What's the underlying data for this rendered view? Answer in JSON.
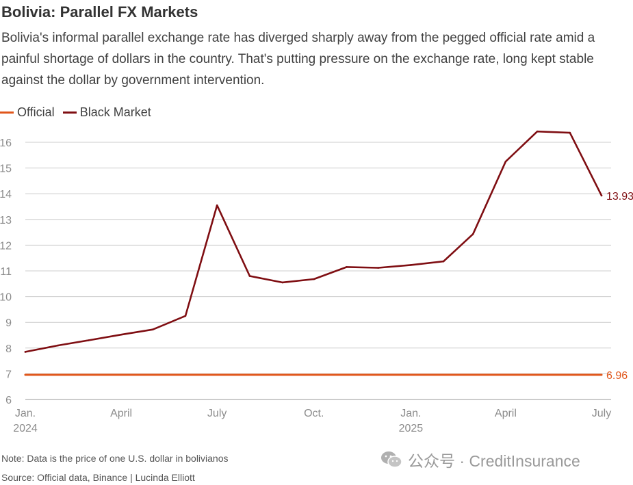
{
  "header": {
    "title": "Bolivia: Parallel FX Markets",
    "subtitle": "Bolivia's informal parallel exchange rate has diverged sharply away from the pegged official rate amid a painful shortage of dollars in the country. That's putting pressure on the exchange rate, long kept stable against the dollar by government intervention."
  },
  "footer": {
    "note": "Note: Data is the price of one U.S. dollar in bolivianos",
    "source": "Source: Official data, Binance | Lucinda Elliott",
    "watermark": "公众号 · CreditInsurance"
  },
  "colors": {
    "official": "#e0561b",
    "black_market": "#7f0e12",
    "grid": "#cccccc",
    "tick_text": "#8c8c8c"
  },
  "chart_data": {
    "type": "line",
    "title": "Bolivia: Parallel FX Markets",
    "xlabel": "",
    "ylabel": "",
    "x_range": [
      "2024-01-01",
      "2025-07-01"
    ],
    "ylim": [
      6,
      16
    ],
    "y_ticks": [
      "6",
      "7",
      "8",
      "9",
      "10",
      "11",
      "12",
      "13",
      "14",
      "15",
      "16"
    ],
    "x_ticks": [
      {
        "date": "2024-01-01",
        "label": "Jan.",
        "sublabel": "2024"
      },
      {
        "date": "2024-04-01",
        "label": "April",
        "sublabel": ""
      },
      {
        "date": "2024-07-01",
        "label": "July",
        "sublabel": ""
      },
      {
        "date": "2024-10-01",
        "label": "Oct.",
        "sublabel": ""
      },
      {
        "date": "2025-01-01",
        "label": "Jan.",
        "sublabel": "2025"
      },
      {
        "date": "2025-04-01",
        "label": "April",
        "sublabel": ""
      },
      {
        "date": "2025-07-01",
        "label": "July",
        "sublabel": ""
      }
    ],
    "grid": true,
    "legend_position": "top-left",
    "series": [
      {
        "name": "Official",
        "color": "#e0561b",
        "end_label": "6.96",
        "points": [
          {
            "x": "2024-01-01",
            "y": 6.96
          },
          {
            "x": "2025-07-01",
            "y": 6.96
          }
        ]
      },
      {
        "name": "Black Market",
        "color": "#7f0e12",
        "end_label": "13.93",
        "points": [
          {
            "x": "2024-01-01",
            "y": 7.85
          },
          {
            "x": "2024-02-01",
            "y": 8.1
          },
          {
            "x": "2024-03-01",
            "y": 8.3
          },
          {
            "x": "2024-04-01",
            "y": 8.52
          },
          {
            "x": "2024-05-01",
            "y": 8.72
          },
          {
            "x": "2024-06-01",
            "y": 9.25
          },
          {
            "x": "2024-07-01",
            "y": 13.55
          },
          {
            "x": "2024-08-01",
            "y": 10.8
          },
          {
            "x": "2024-09-01",
            "y": 10.55
          },
          {
            "x": "2024-10-01",
            "y": 10.68
          },
          {
            "x": "2024-11-01",
            "y": 11.15
          },
          {
            "x": "2024-12-01",
            "y": 11.12
          },
          {
            "x": "2025-01-01",
            "y": 11.23
          },
          {
            "x": "2025-02-01",
            "y": 11.37
          },
          {
            "x": "2025-03-01",
            "y": 12.43
          },
          {
            "x": "2025-04-01",
            "y": 15.25
          },
          {
            "x": "2025-05-01",
            "y": 16.42
          },
          {
            "x": "2025-06-01",
            "y": 16.37
          },
          {
            "x": "2025-07-01",
            "y": 13.93
          }
        ]
      }
    ]
  }
}
